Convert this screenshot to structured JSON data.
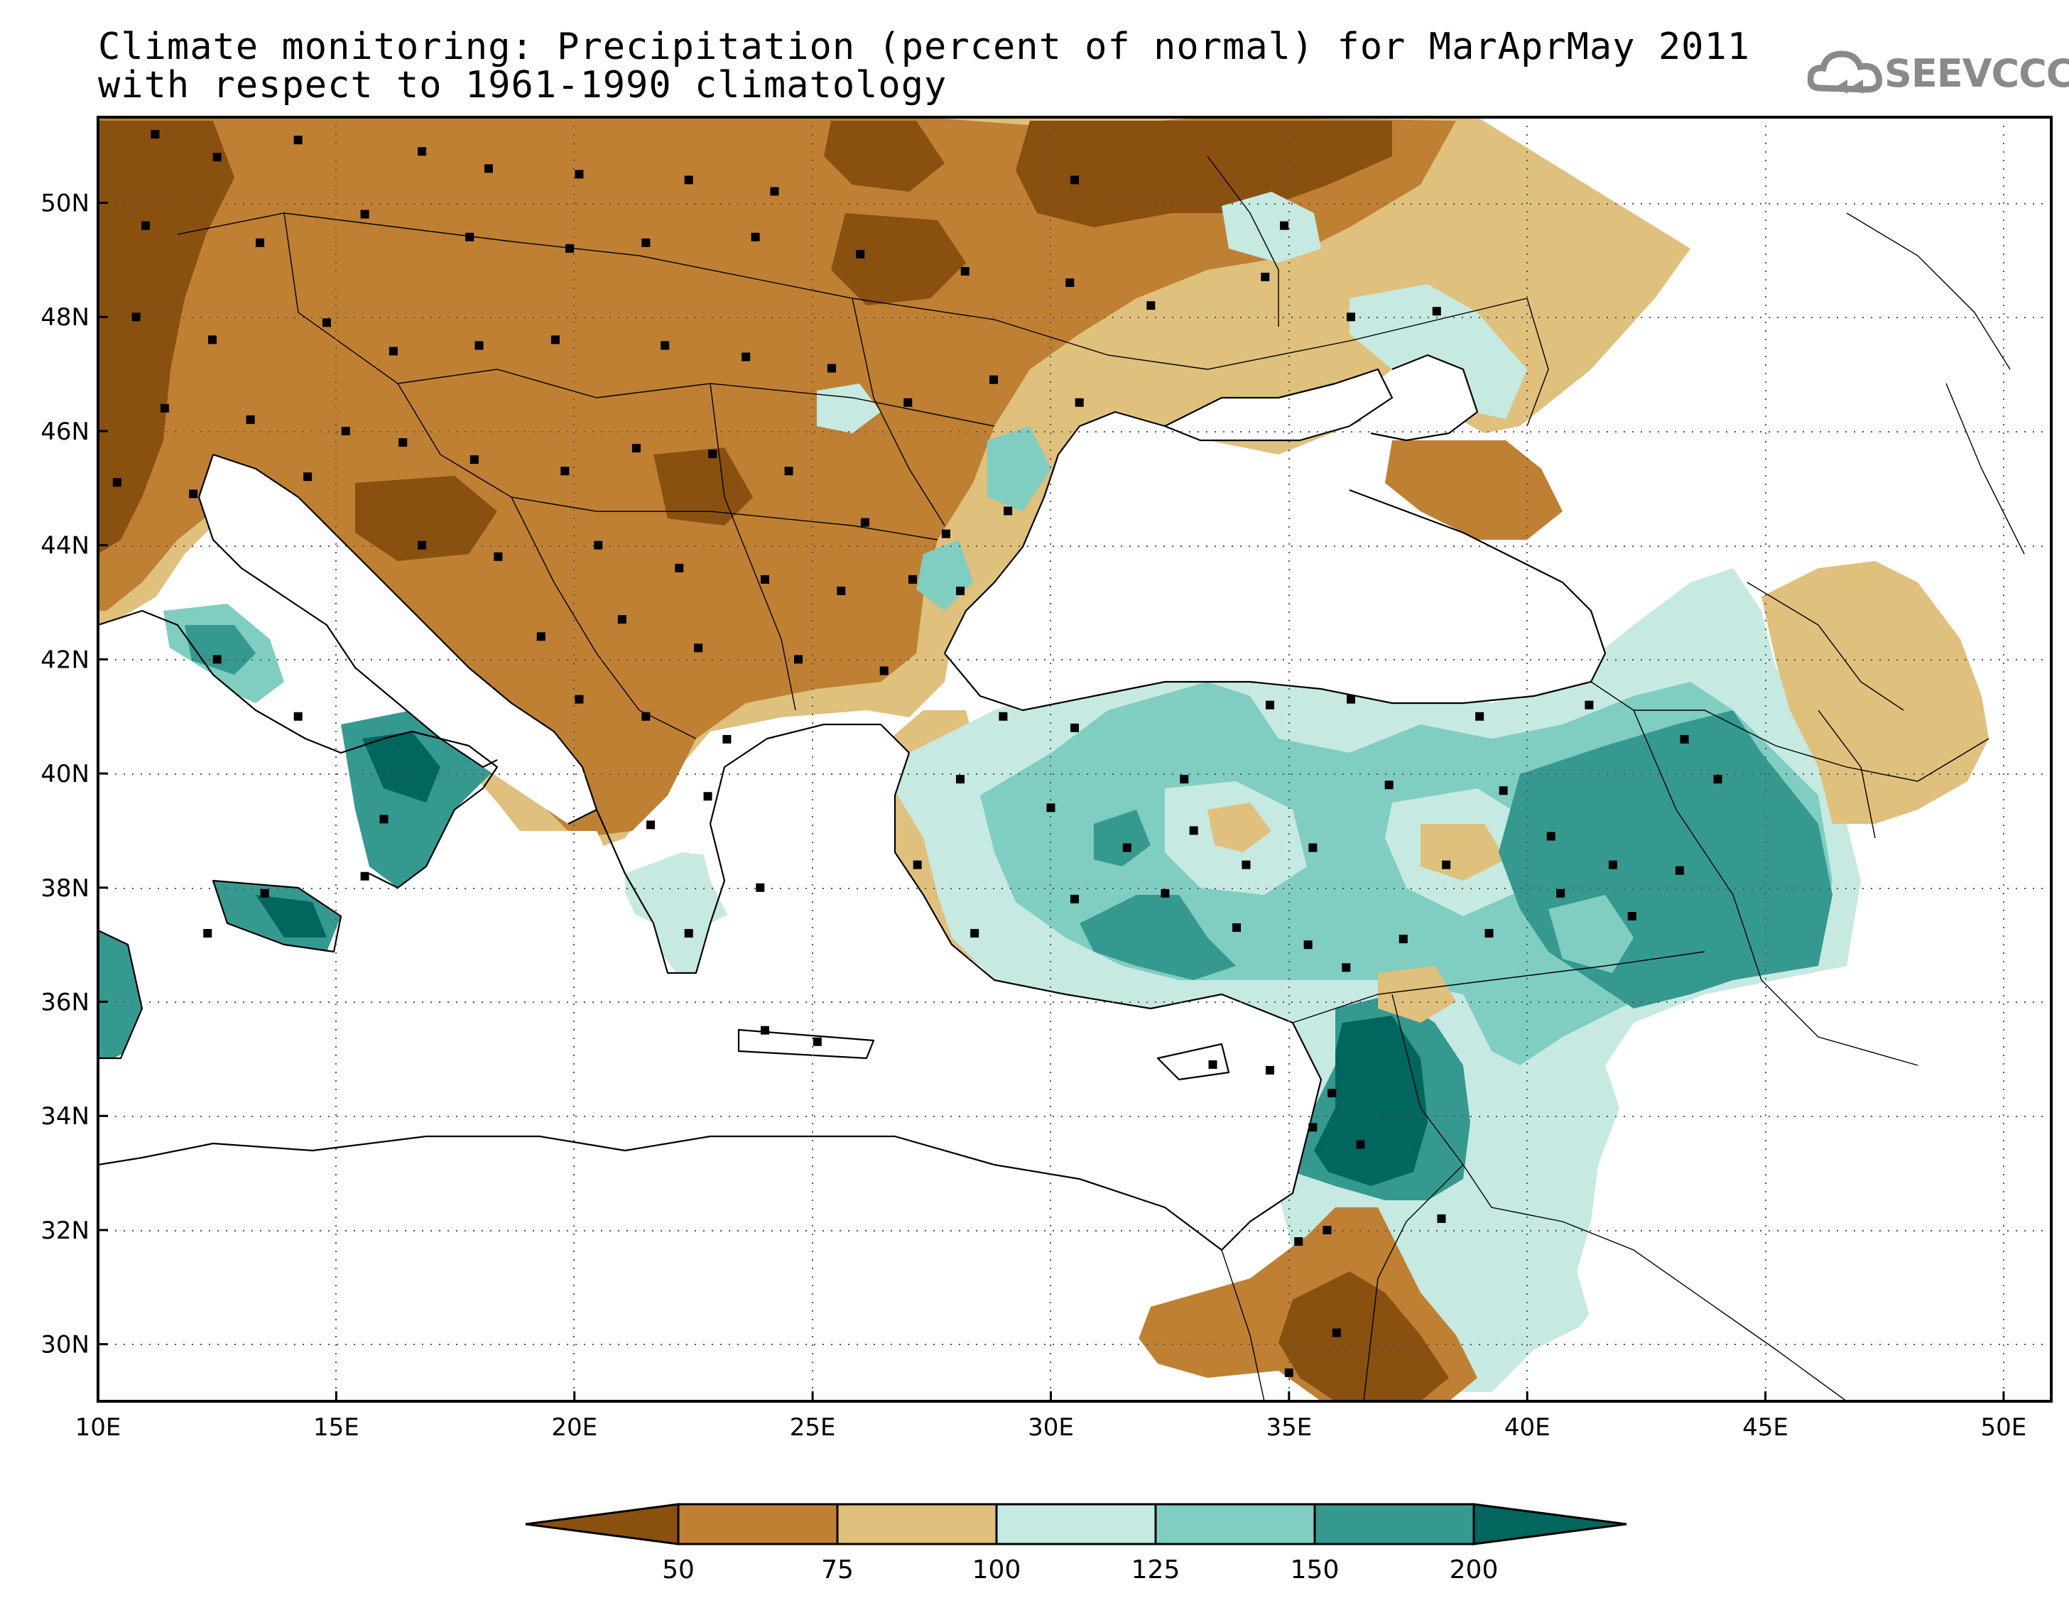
{
  "title": {
    "line1": "Climate monitoring: Precipitation (percent of normal) for MarAprMay 2011",
    "line2": "with respect to 1961-1990 climatology"
  },
  "logo": {
    "text": "SEEVCCC",
    "icon": "cloud-icon"
  },
  "axes": {
    "lat_ticks": [
      "50N",
      "48N",
      "46N",
      "44N",
      "42N",
      "40N",
      "38N",
      "36N",
      "34N",
      "32N",
      "30N"
    ],
    "lon_ticks": [
      "10E",
      "15E",
      "20E",
      "25E",
      "30E",
      "35E",
      "40E",
      "45E",
      "50E"
    ],
    "lon_range": [
      10,
      51
    ],
    "lat_range": [
      29,
      51.5
    ],
    "grid": "dotted"
  },
  "legend": {
    "levels": [
      "50",
      "75",
      "100",
      "125",
      "150",
      "200"
    ],
    "colors": [
      "#8a5010",
      "#bf8034",
      "#dfc07d",
      "#c6e9e1",
      "#80cdc1",
      "#369990",
      "#01665e"
    ]
  },
  "colors": {
    "very_dry": "#8a5010",
    "dry": "#bf8034",
    "slightly_dry": "#dfc07d",
    "slightly_wet": "#c6e9e1",
    "wet": "#80cdc1",
    "very_wet": "#369990",
    "extreme_wet": "#01665e"
  }
}
